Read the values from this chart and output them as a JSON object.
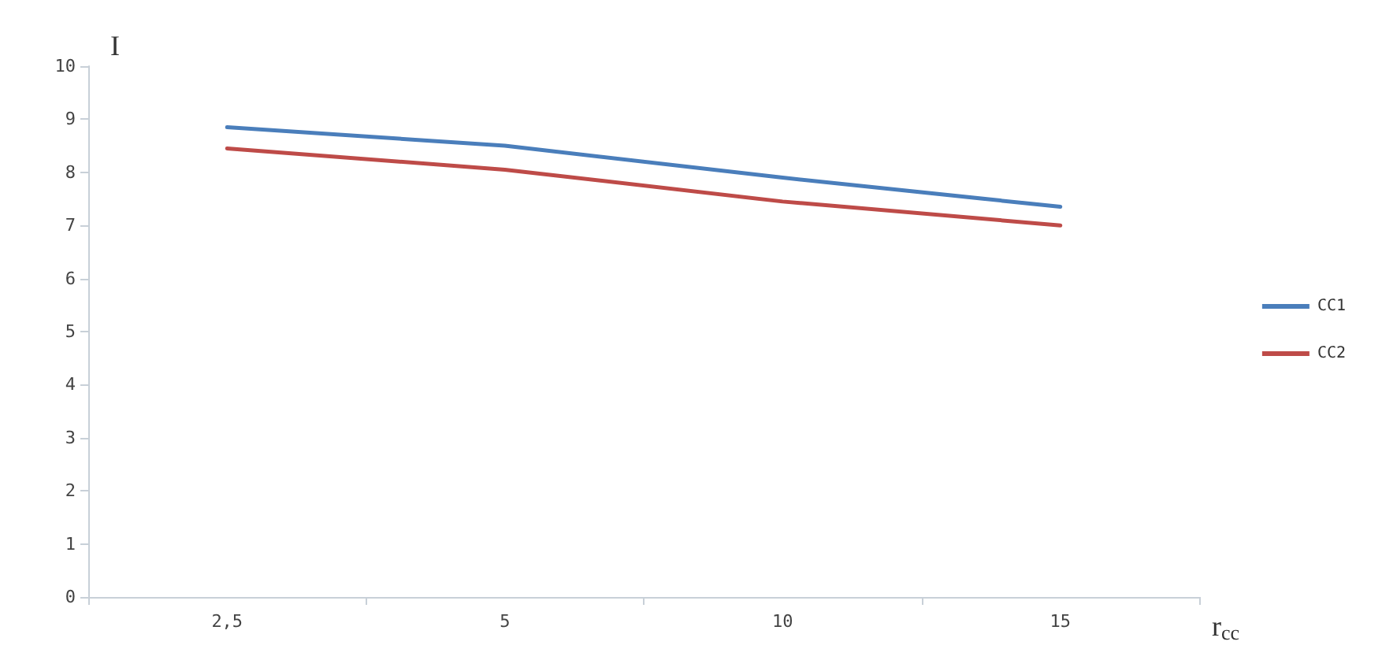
{
  "chart_data": {
    "type": "line",
    "xlabel": "r$_{cc}$",
    "ylabel": "I",
    "categories": [
      "2,5",
      "5",
      "10",
      "15"
    ],
    "series": [
      {
        "name": "CC1",
        "color": "#4a7ebb",
        "values": [
          8.85,
          8.5,
          7.9,
          7.35
        ]
      },
      {
        "name": "CC2",
        "color": "#be4b48",
        "values": [
          8.45,
          8.05,
          7.45,
          7.0
        ]
      }
    ],
    "ylim": [
      0,
      10
    ],
    "yticks": [
      0,
      1,
      2,
      3,
      4,
      5,
      6,
      7,
      8,
      9,
      10
    ],
    "grid": false,
    "legend": "right",
    "marker": "none",
    "line_style": "solid"
  }
}
